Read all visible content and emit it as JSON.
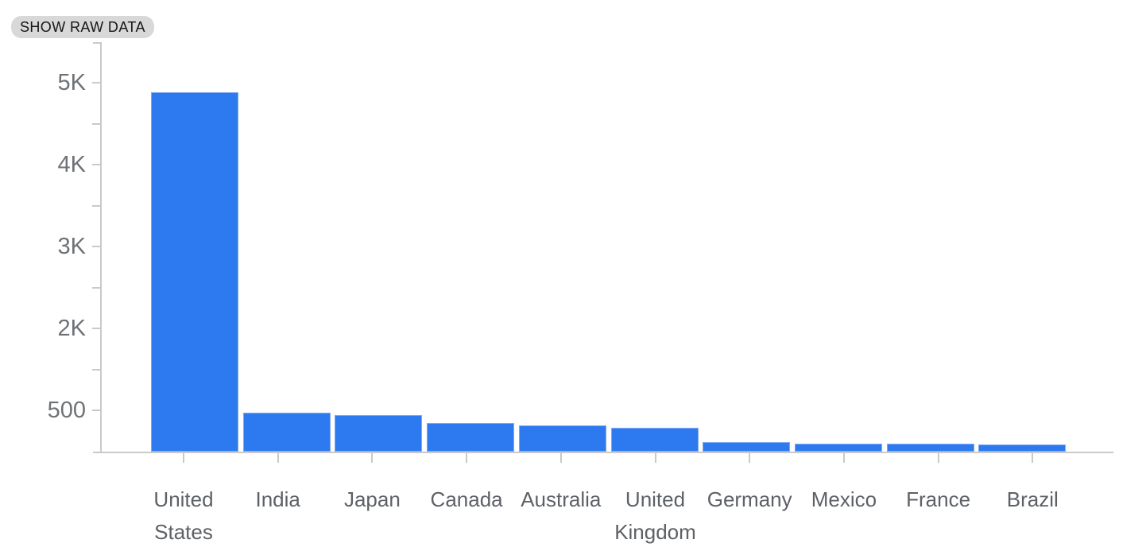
{
  "toolbar": {
    "show_raw_data_label": "SHOW RAW DATA"
  },
  "chart_data": {
    "type": "bar",
    "title": "",
    "xlabel": "",
    "ylabel": "",
    "categories": [
      "United States",
      "India",
      "Japan",
      "Canada",
      "Australia",
      "United Kingdom",
      "Germany",
      "Mexico",
      "France",
      "Brazil"
    ],
    "values": [
      4890,
      470,
      440,
      345,
      320,
      285,
      115,
      90,
      90,
      85
    ],
    "y_tick_labels_top_to_bottom": [
      "5K",
      "4K",
      "3K",
      "2K",
      "500"
    ],
    "y_tick_values": [
      5000,
      4000,
      3000,
      2000,
      500
    ],
    "axis_anchors_value_to_fraction": [
      [
        0,
        0
      ],
      [
        500,
        0.1
      ],
      [
        2000,
        0.3
      ],
      [
        3000,
        0.5
      ],
      [
        4000,
        0.7
      ],
      [
        5000,
        0.9
      ]
    ],
    "ylim": [
      0,
      5550
    ],
    "grid": "off",
    "legend": "none",
    "colors": {
      "bar": "#2d7af0",
      "bar_edge": "#7fa9f2",
      "axis": "#c9c9c9",
      "x_label": "#5d6166",
      "y_label": "#6e7277",
      "chip_bg": "#d8d8d8",
      "chip_text": "#161616"
    }
  }
}
